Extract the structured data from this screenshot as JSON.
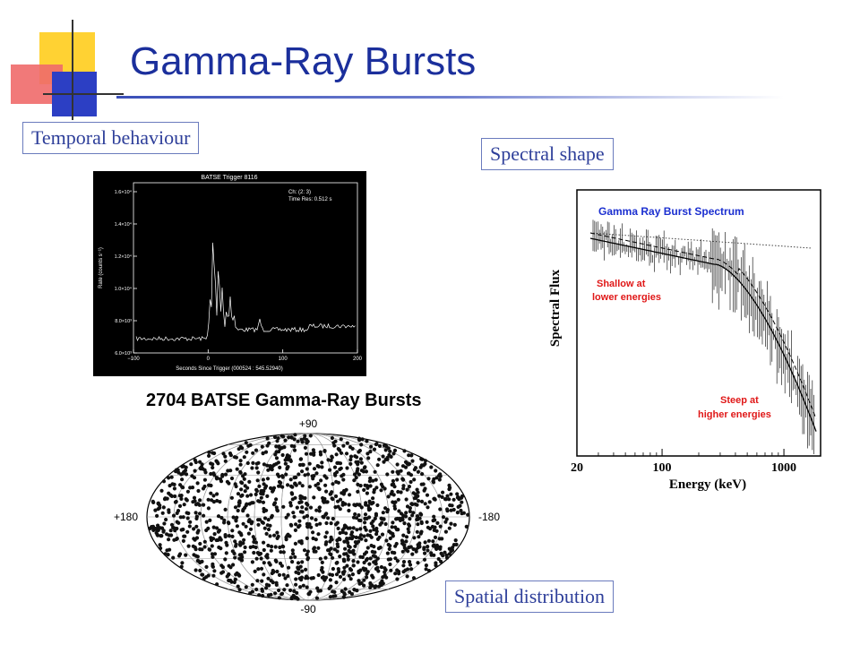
{
  "slide": {
    "title": "Gamma-Ray Bursts",
    "colors": {
      "title": "#1b2f9c",
      "label_text": "#2e3f9a",
      "label_border": "#6a7bbd",
      "deco_yellow": "#ffd233",
      "deco_red": "#f06a6a",
      "deco_blue": "#2c3fc4"
    }
  },
  "labels": {
    "temporal": "Temporal behaviour",
    "spectral": "Spectral shape",
    "spatial": "Spatial distribution"
  },
  "lightcurve": {
    "title": "BATSE Trigger 8116",
    "legend_ch": "Ch: (2: 3)",
    "legend_res": "Time Res: 0.512 s",
    "ylabel": "Rate (counts s⁻¹)",
    "xlabel": "Seconds Since Trigger (000524 : 545.52940)",
    "xticks": [
      "−100",
      "0",
      "100",
      "200"
    ],
    "yticks": [
      "6.0×10³",
      "8.0×10³",
      "1.0×10⁴",
      "1.2×10⁴",
      "1.4×10⁴",
      "1.6×10⁴"
    ]
  },
  "skymap": {
    "title": "2704 BATSE Gamma-Ray Bursts",
    "label_top": "+90",
    "label_bottom": "-90",
    "label_left": "+180",
    "label_right": "-180"
  },
  "spectrum": {
    "title": "Gamma Ray Burst Spectrum",
    "ylabel": "Spectral Flux",
    "xlabel": "Energy (keV)",
    "xticks": [
      "20",
      "100",
      "1000"
    ],
    "annot_low_1": "Shallow at",
    "annot_low_2": "lower energies",
    "annot_high_1": "Steep at",
    "annot_high_2": "higher energies",
    "colors": {
      "title": "#1b2fd0",
      "annotation": "#e01818"
    }
  }
}
